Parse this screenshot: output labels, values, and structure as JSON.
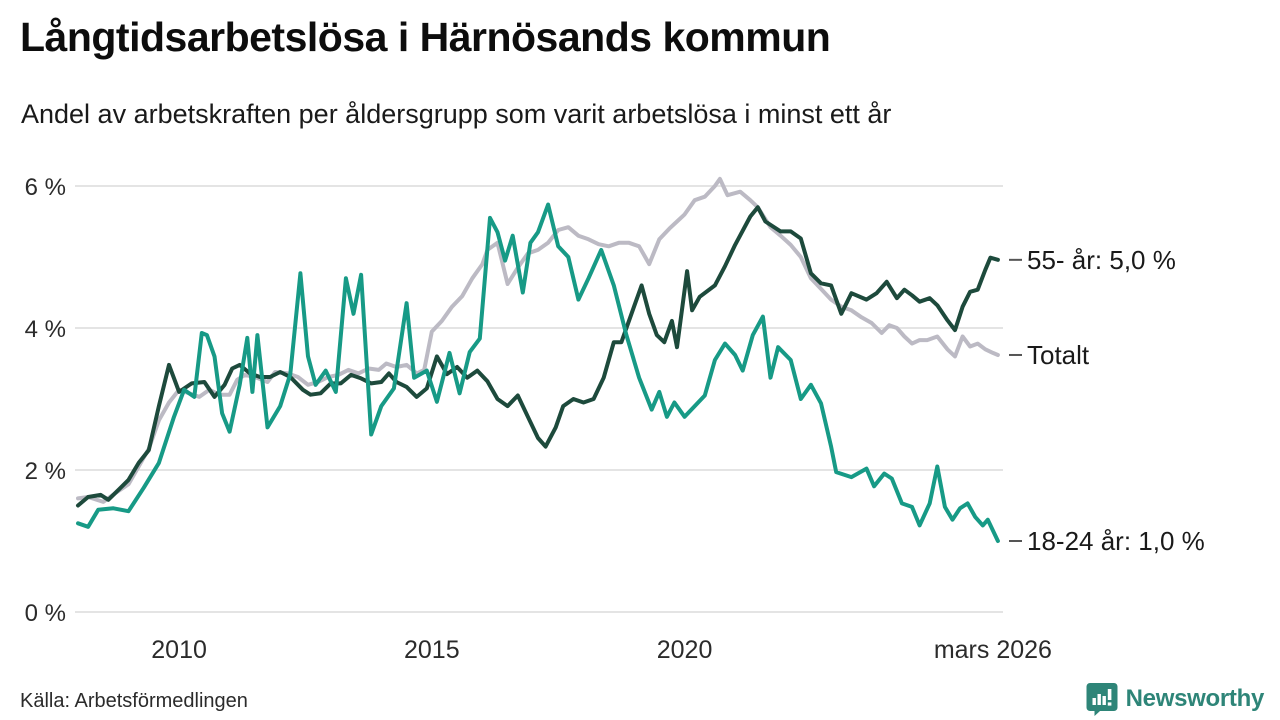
{
  "header": {
    "title": "Långtidsarbetslösa i Härnösands kommun",
    "subtitle": "Andel av arbetskraften per åldersgrupp som varit arbetslösa i minst ett år"
  },
  "footer": {
    "source": "Källa: Arbetsförmedlingen",
    "brand": "Newsworthy"
  },
  "colors": {
    "series_55": "#1d4a3c",
    "series_total": "#bcbac4",
    "series_18_24": "#179a86",
    "gridline": "#e4e4e4",
    "axis_text": "#2b2b2b",
    "annotation_text": "#1a1a1a",
    "annotation_tick": "#555555",
    "brand_teal": "#2e8578"
  },
  "chart_data": {
    "type": "line",
    "title": "Långtidsarbetslösa i Härnösands kommun",
    "subtitle": "Andel av arbetskraften per åldersgrupp som varit arbetslösa i minst ett år",
    "grid": true,
    "legend_position": "right-edge-annotations",
    "x_range": [
      2008.0,
      2026.3
    ],
    "ylim": [
      0,
      6.35
    ],
    "y_ticks": [
      {
        "value": 0,
        "label": "0 %"
      },
      {
        "value": 2,
        "label": "2 %"
      },
      {
        "value": 4,
        "label": "4 %"
      },
      {
        "value": 6,
        "label": "6 %"
      }
    ],
    "x_ticks": [
      {
        "year": 2010,
        "label": "2010"
      },
      {
        "year": 2015,
        "label": "2015"
      },
      {
        "year": 2020,
        "label": "2020"
      },
      {
        "year": 2026.1,
        "label": "mars 2026"
      }
    ],
    "series": [
      {
        "name": "Totalt",
        "end_label": "Totalt",
        "end_value": 3.6,
        "color": "#bcbac4",
        "points": [
          [
            2008.0,
            1.6
          ],
          [
            2008.2,
            1.62
          ],
          [
            2008.5,
            1.55
          ],
          [
            2008.75,
            1.68
          ],
          [
            2009.0,
            1.8
          ],
          [
            2009.2,
            2.05
          ],
          [
            2009.4,
            2.3
          ],
          [
            2009.6,
            2.7
          ],
          [
            2009.8,
            2.95
          ],
          [
            2010.0,
            3.13
          ],
          [
            2010.2,
            3.08
          ],
          [
            2010.4,
            3.03
          ],
          [
            2010.6,
            3.13
          ],
          [
            2010.8,
            3.06
          ],
          [
            2011.0,
            3.06
          ],
          [
            2011.15,
            3.27
          ],
          [
            2011.3,
            3.34
          ],
          [
            2011.5,
            3.31
          ],
          [
            2011.75,
            3.24
          ],
          [
            2011.9,
            3.38
          ],
          [
            2012.15,
            3.36
          ],
          [
            2012.35,
            3.31
          ],
          [
            2012.55,
            3.2
          ],
          [
            2012.75,
            3.24
          ],
          [
            2012.95,
            3.31
          ],
          [
            2013.15,
            3.34
          ],
          [
            2013.35,
            3.41
          ],
          [
            2013.55,
            3.36
          ],
          [
            2013.75,
            3.43
          ],
          [
            2013.95,
            3.41
          ],
          [
            2014.1,
            3.5
          ],
          [
            2014.3,
            3.45
          ],
          [
            2014.5,
            3.48
          ],
          [
            2014.7,
            3.36
          ],
          [
            2014.85,
            3.41
          ],
          [
            2015.0,
            3.95
          ],
          [
            2015.2,
            4.1
          ],
          [
            2015.4,
            4.3
          ],
          [
            2015.6,
            4.45
          ],
          [
            2015.8,
            4.7
          ],
          [
            2016.0,
            4.9
          ],
          [
            2016.1,
            5.1
          ],
          [
            2016.3,
            5.2
          ],
          [
            2016.5,
            4.62
          ],
          [
            2016.7,
            4.85
          ],
          [
            2016.9,
            5.05
          ],
          [
            2017.1,
            5.1
          ],
          [
            2017.3,
            5.2
          ],
          [
            2017.5,
            5.38
          ],
          [
            2017.7,
            5.42
          ],
          [
            2017.9,
            5.3
          ],
          [
            2018.1,
            5.25
          ],
          [
            2018.3,
            5.18
          ],
          [
            2018.5,
            5.15
          ],
          [
            2018.7,
            5.2
          ],
          [
            2018.9,
            5.2
          ],
          [
            2019.1,
            5.15
          ],
          [
            2019.3,
            4.9
          ],
          [
            2019.5,
            5.25
          ],
          [
            2019.7,
            5.4
          ],
          [
            2019.85,
            5.5
          ],
          [
            2020.0,
            5.6
          ],
          [
            2020.2,
            5.8
          ],
          [
            2020.4,
            5.85
          ],
          [
            2020.6,
            6.0
          ],
          [
            2020.7,
            6.1
          ],
          [
            2020.85,
            5.87
          ],
          [
            2021.1,
            5.92
          ],
          [
            2021.3,
            5.8
          ],
          [
            2021.45,
            5.7
          ],
          [
            2021.7,
            5.42
          ],
          [
            2021.9,
            5.3
          ],
          [
            2022.1,
            5.17
          ],
          [
            2022.3,
            5.0
          ],
          [
            2022.5,
            4.7
          ],
          [
            2022.7,
            4.55
          ],
          [
            2022.9,
            4.4
          ],
          [
            2023.1,
            4.3
          ],
          [
            2023.3,
            4.25
          ],
          [
            2023.5,
            4.15
          ],
          [
            2023.7,
            4.07
          ],
          [
            2023.9,
            3.93
          ],
          [
            2024.05,
            4.04
          ],
          [
            2024.2,
            4.0
          ],
          [
            2024.35,
            3.88
          ],
          [
            2024.5,
            3.78
          ],
          [
            2024.65,
            3.83
          ],
          [
            2024.8,
            3.83
          ],
          [
            2025.0,
            3.88
          ],
          [
            2025.2,
            3.7
          ],
          [
            2025.35,
            3.6
          ],
          [
            2025.5,
            3.88
          ],
          [
            2025.65,
            3.74
          ],
          [
            2025.8,
            3.78
          ],
          [
            2025.95,
            3.7
          ],
          [
            2026.1,
            3.65
          ],
          [
            2026.2,
            3.62
          ]
        ]
      },
      {
        "name": "55- år",
        "end_label": "55- år: 5,0 %",
        "end_value": 5.0,
        "color": "#1d4a3c",
        "points": [
          [
            2008.0,
            1.5
          ],
          [
            2008.2,
            1.62
          ],
          [
            2008.45,
            1.65
          ],
          [
            2008.6,
            1.58
          ],
          [
            2008.8,
            1.72
          ],
          [
            2009.0,
            1.86
          ],
          [
            2009.2,
            2.1
          ],
          [
            2009.4,
            2.28
          ],
          [
            2009.6,
            2.9
          ],
          [
            2009.8,
            3.48
          ],
          [
            2010.0,
            3.1
          ],
          [
            2010.25,
            3.22
          ],
          [
            2010.5,
            3.24
          ],
          [
            2010.7,
            3.03
          ],
          [
            2010.9,
            3.2
          ],
          [
            2011.05,
            3.43
          ],
          [
            2011.2,
            3.48
          ],
          [
            2011.4,
            3.36
          ],
          [
            2011.6,
            3.31
          ],
          [
            2011.8,
            3.31
          ],
          [
            2012.0,
            3.38
          ],
          [
            2012.2,
            3.31
          ],
          [
            2012.45,
            3.13
          ],
          [
            2012.6,
            3.06
          ],
          [
            2012.8,
            3.08
          ],
          [
            2013.0,
            3.22
          ],
          [
            2013.2,
            3.22
          ],
          [
            2013.4,
            3.34
          ],
          [
            2013.6,
            3.29
          ],
          [
            2013.8,
            3.22
          ],
          [
            2014.0,
            3.24
          ],
          [
            2014.15,
            3.36
          ],
          [
            2014.3,
            3.24
          ],
          [
            2014.5,
            3.17
          ],
          [
            2014.7,
            3.03
          ],
          [
            2014.9,
            3.15
          ],
          [
            2015.1,
            3.6
          ],
          [
            2015.3,
            3.35
          ],
          [
            2015.5,
            3.45
          ],
          [
            2015.7,
            3.3
          ],
          [
            2015.9,
            3.4
          ],
          [
            2016.1,
            3.25
          ],
          [
            2016.3,
            3.0
          ],
          [
            2016.5,
            2.9
          ],
          [
            2016.7,
            3.05
          ],
          [
            2016.9,
            2.75
          ],
          [
            2017.1,
            2.45
          ],
          [
            2017.25,
            2.33
          ],
          [
            2017.45,
            2.6
          ],
          [
            2017.6,
            2.9
          ],
          [
            2017.8,
            3.0
          ],
          [
            2018.0,
            2.95
          ],
          [
            2018.2,
            3.0
          ],
          [
            2018.4,
            3.3
          ],
          [
            2018.6,
            3.8
          ],
          [
            2018.75,
            3.8
          ],
          [
            2019.0,
            4.3
          ],
          [
            2019.15,
            4.6
          ],
          [
            2019.3,
            4.2
          ],
          [
            2019.45,
            3.9
          ],
          [
            2019.6,
            3.8
          ],
          [
            2019.75,
            4.1
          ],
          [
            2019.85,
            3.73
          ],
          [
            2020.05,
            4.8
          ],
          [
            2020.15,
            4.25
          ],
          [
            2020.3,
            4.44
          ],
          [
            2020.6,
            4.6
          ],
          [
            2020.8,
            4.87
          ],
          [
            2021.0,
            5.17
          ],
          [
            2021.3,
            5.57
          ],
          [
            2021.45,
            5.7
          ],
          [
            2021.6,
            5.5
          ],
          [
            2021.9,
            5.36
          ],
          [
            2022.1,
            5.36
          ],
          [
            2022.3,
            5.26
          ],
          [
            2022.5,
            4.77
          ],
          [
            2022.7,
            4.63
          ],
          [
            2022.9,
            4.6
          ],
          [
            2023.1,
            4.2
          ],
          [
            2023.3,
            4.49
          ],
          [
            2023.6,
            4.4
          ],
          [
            2023.8,
            4.49
          ],
          [
            2024.0,
            4.65
          ],
          [
            2024.2,
            4.42
          ],
          [
            2024.35,
            4.54
          ],
          [
            2024.5,
            4.46
          ],
          [
            2024.65,
            4.37
          ],
          [
            2024.85,
            4.42
          ],
          [
            2025.0,
            4.32
          ],
          [
            2025.2,
            4.11
          ],
          [
            2025.35,
            3.97
          ],
          [
            2025.5,
            4.3
          ],
          [
            2025.65,
            4.51
          ],
          [
            2025.8,
            4.54
          ],
          [
            2025.95,
            4.82
          ],
          [
            2026.05,
            4.99
          ],
          [
            2026.2,
            4.96
          ]
        ]
      },
      {
        "name": "18-24 år",
        "end_label": "18-24 år: 1,0 %",
        "end_value": 1.0,
        "color": "#179a86",
        "points": [
          [
            2008.0,
            1.25
          ],
          [
            2008.2,
            1.2
          ],
          [
            2008.4,
            1.44
          ],
          [
            2008.7,
            1.46
          ],
          [
            2009.0,
            1.42
          ],
          [
            2009.3,
            1.75
          ],
          [
            2009.6,
            2.1
          ],
          [
            2009.9,
            2.75
          ],
          [
            2010.1,
            3.13
          ],
          [
            2010.3,
            3.03
          ],
          [
            2010.45,
            3.93
          ],
          [
            2010.55,
            3.9
          ],
          [
            2010.7,
            3.6
          ],
          [
            2010.85,
            2.8
          ],
          [
            2011.0,
            2.54
          ],
          [
            2011.2,
            3.2
          ],
          [
            2011.35,
            3.86
          ],
          [
            2011.45,
            3.1
          ],
          [
            2011.55,
            3.9
          ],
          [
            2011.75,
            2.6
          ],
          [
            2012.0,
            2.9
          ],
          [
            2012.2,
            3.35
          ],
          [
            2012.4,
            4.77
          ],
          [
            2012.55,
            3.6
          ],
          [
            2012.7,
            3.2
          ],
          [
            2012.9,
            3.4
          ],
          [
            2013.1,
            3.1
          ],
          [
            2013.3,
            4.7
          ],
          [
            2013.45,
            4.2
          ],
          [
            2013.6,
            4.75
          ],
          [
            2013.8,
            2.5
          ],
          [
            2014.0,
            2.9
          ],
          [
            2014.25,
            3.15
          ],
          [
            2014.5,
            4.35
          ],
          [
            2014.65,
            3.3
          ],
          [
            2014.9,
            3.4
          ],
          [
            2015.1,
            2.96
          ],
          [
            2015.35,
            3.65
          ],
          [
            2015.55,
            3.08
          ],
          [
            2015.75,
            3.66
          ],
          [
            2015.95,
            3.85
          ],
          [
            2016.15,
            5.55
          ],
          [
            2016.3,
            5.35
          ],
          [
            2016.45,
            4.95
          ],
          [
            2016.6,
            5.3
          ],
          [
            2016.8,
            4.5
          ],
          [
            2016.95,
            5.2
          ],
          [
            2017.1,
            5.35
          ],
          [
            2017.3,
            5.74
          ],
          [
            2017.5,
            5.15
          ],
          [
            2017.7,
            5.0
          ],
          [
            2017.9,
            4.4
          ],
          [
            2018.1,
            4.7
          ],
          [
            2018.35,
            5.1
          ],
          [
            2018.6,
            4.6
          ],
          [
            2018.85,
            3.9
          ],
          [
            2019.1,
            3.3
          ],
          [
            2019.35,
            2.85
          ],
          [
            2019.5,
            3.1
          ],
          [
            2019.65,
            2.75
          ],
          [
            2019.8,
            2.95
          ],
          [
            2020.0,
            2.75
          ],
          [
            2020.2,
            2.9
          ],
          [
            2020.4,
            3.05
          ],
          [
            2020.6,
            3.55
          ],
          [
            2020.8,
            3.78
          ],
          [
            2021.0,
            3.62
          ],
          [
            2021.15,
            3.4
          ],
          [
            2021.35,
            3.9
          ],
          [
            2021.55,
            4.16
          ],
          [
            2021.7,
            3.3
          ],
          [
            2021.85,
            3.73
          ],
          [
            2022.1,
            3.55
          ],
          [
            2022.3,
            3.0
          ],
          [
            2022.5,
            3.2
          ],
          [
            2022.7,
            2.94
          ],
          [
            2022.9,
            2.33
          ],
          [
            2023.0,
            1.97
          ],
          [
            2023.3,
            1.9
          ],
          [
            2023.6,
            2.02
          ],
          [
            2023.75,
            1.77
          ],
          [
            2023.95,
            1.95
          ],
          [
            2024.1,
            1.88
          ],
          [
            2024.3,
            1.53
          ],
          [
            2024.5,
            1.48
          ],
          [
            2024.65,
            1.22
          ],
          [
            2024.85,
            1.53
          ],
          [
            2025.0,
            2.05
          ],
          [
            2025.15,
            1.48
          ],
          [
            2025.3,
            1.3
          ],
          [
            2025.45,
            1.46
          ],
          [
            2025.6,
            1.53
          ],
          [
            2025.75,
            1.34
          ],
          [
            2025.9,
            1.22
          ],
          [
            2026.0,
            1.3
          ],
          [
            2026.2,
            1.0
          ]
        ]
      }
    ]
  }
}
